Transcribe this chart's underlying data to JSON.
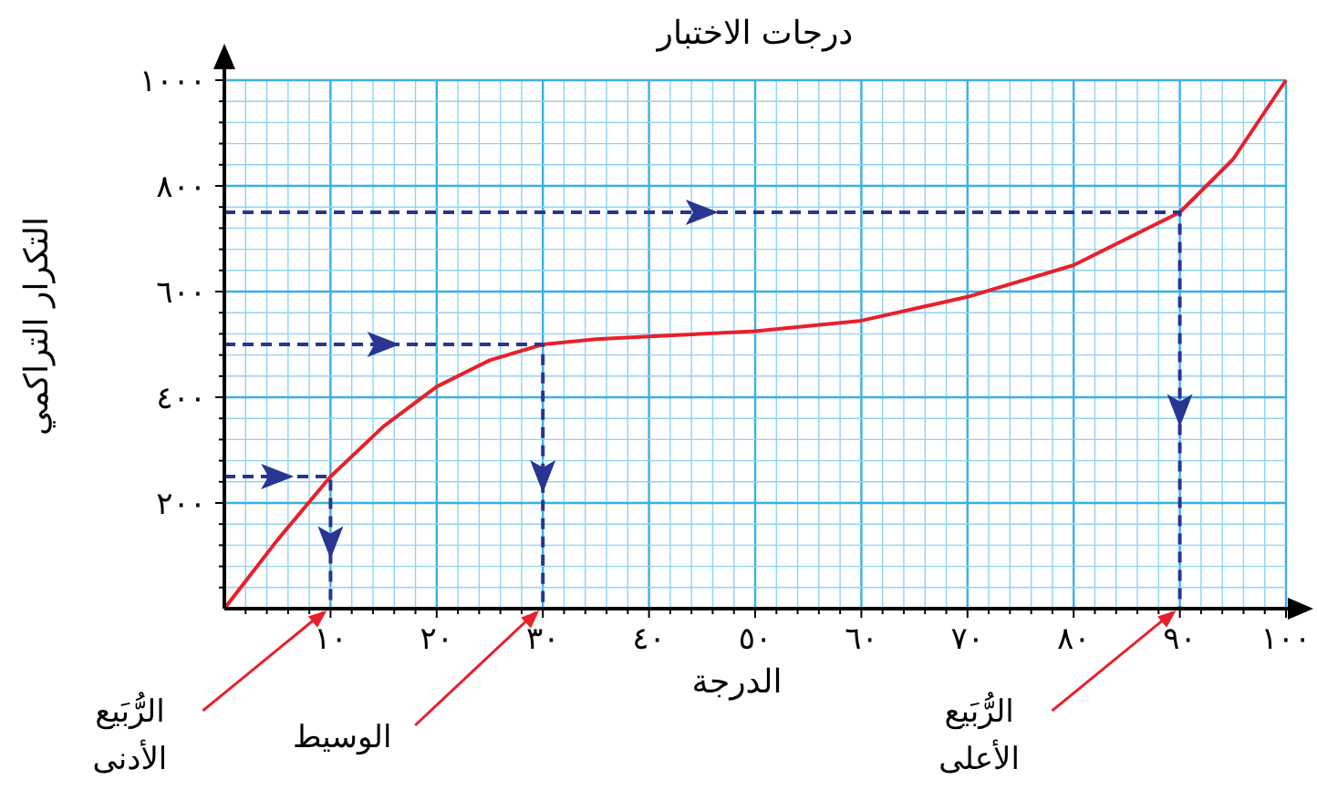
{
  "chart_data": {
    "type": "line",
    "title": "درجات الاختبار",
    "xlabel": "الدرجة",
    "ylabel": "التكرار التراكمي",
    "x": [
      0,
      5,
      10,
      15,
      20,
      25,
      30,
      35,
      40,
      50,
      60,
      70,
      80,
      90,
      95,
      100
    ],
    "series": [
      {
        "color": "#e8202a",
        "values": [
          0,
          130,
          250,
          345,
          420,
          470,
          500,
          510,
          515,
          525,
          545,
          590,
          650,
          750,
          850,
          1000
        ]
      },
      {
        "color": "#283593",
        "line_style": "dashed",
        "x": [
          0,
          10,
          10
        ],
        "values": [
          250,
          250,
          0
        ]
      },
      {
        "color": "#283593",
        "line_style": "dashed",
        "x": [
          0,
          30,
          30
        ],
        "values": [
          500,
          500,
          0
        ]
      },
      {
        "color": "#283593",
        "line_style": "dashed",
        "x": [
          0,
          90,
          90
        ],
        "values": [
          750,
          750,
          0
        ]
      }
    ],
    "xlim": [
      0,
      100
    ],
    "ylim": [
      0,
      1000
    ],
    "xticks": [
      {
        "value": 2,
        "label": null
      },
      {
        "value": 4,
        "label": null
      },
      {
        "value": 6,
        "label": null
      },
      {
        "value": 8,
        "label": null
      },
      {
        "value": 10,
        "label": "١٠"
      },
      {
        "value": 12,
        "label": null
      },
      {
        "value": 14,
        "label": null
      },
      {
        "value": 16,
        "label": null
      },
      {
        "value": 18,
        "label": null
      },
      {
        "value": 20,
        "label": "٢٠"
      },
      {
        "value": 22,
        "label": null
      },
      {
        "value": 24,
        "label": null
      },
      {
        "value": 26,
        "label": null
      },
      {
        "value": 28,
        "label": null
      },
      {
        "value": 30,
        "label": "٣٠"
      },
      {
        "value": 32,
        "label": null
      },
      {
        "value": 34,
        "label": null
      },
      {
        "value": 36,
        "label": null
      },
      {
        "value": 38,
        "label": null
      },
      {
        "value": 40,
        "label": "٤٠"
      },
      {
        "value": 42,
        "label": null
      },
      {
        "value": 44,
        "label": null
      },
      {
        "value": 46,
        "label": null
      },
      {
        "value": 48,
        "label": null
      },
      {
        "value": 50,
        "label": "٥٠"
      },
      {
        "value": 52,
        "label": null
      },
      {
        "value": 54,
        "label": null
      },
      {
        "value": 56,
        "label": null
      },
      {
        "value": 58,
        "label": null
      },
      {
        "value": 60,
        "label": "٦٠"
      },
      {
        "value": 62,
        "label": null
      },
      {
        "value": 64,
        "label": null
      },
      {
        "value": 66,
        "label": null
      },
      {
        "value": 68,
        "label": null
      },
      {
        "value": 70,
        "label": "٧٠"
      },
      {
        "value": 72,
        "label": null
      },
      {
        "value": 74,
        "label": null
      },
      {
        "value": 76,
        "label": null
      },
      {
        "value": 78,
        "label": null
      },
      {
        "value": 80,
        "label": "٨٠"
      },
      {
        "value": 82,
        "label": null
      },
      {
        "value": 84,
        "label": null
      },
      {
        "value": 86,
        "label": null
      },
      {
        "value": 88,
        "label": null
      },
      {
        "value": 90,
        "label": "٩٠"
      },
      {
        "value": 92,
        "label": null
      },
      {
        "value": 94,
        "label": null
      },
      {
        "value": 96,
        "label": null
      },
      {
        "value": 98,
        "label": null
      },
      {
        "value": 100,
        "label": "١٠٠"
      }
    ],
    "yticks": [
      {
        "value": 40,
        "label": null
      },
      {
        "value": 80,
        "label": null
      },
      {
        "value": 120,
        "label": null
      },
      {
        "value": 160,
        "label": null
      },
      {
        "value": 200,
        "label": "٢٠٠"
      },
      {
        "value": 240,
        "label": null
      },
      {
        "value": 280,
        "label": null
      },
      {
        "value": 320,
        "label": null
      },
      {
        "value": 360,
        "label": null
      },
      {
        "value": 400,
        "label": "٤٠٠"
      },
      {
        "value": 440,
        "label": null
      },
      {
        "value": 480,
        "label": null
      },
      {
        "value": 520,
        "label": null
      },
      {
        "value": 560,
        "label": null
      },
      {
        "value": 600,
        "label": "٦٠٠"
      },
      {
        "value": 640,
        "label": null
      },
      {
        "value": 680,
        "label": null
      },
      {
        "value": 720,
        "label": null
      },
      {
        "value": 760,
        "label": null
      },
      {
        "value": 800,
        "label": "٨٠٠"
      },
      {
        "value": 840,
        "label": null
      },
      {
        "value": 880,
        "label": null
      },
      {
        "value": 920,
        "label": null
      },
      {
        "value": 960,
        "label": null
      },
      {
        "value": 1000,
        "label": "١٠٠٠"
      }
    ],
    "grid": true,
    "annotations": [
      {
        "text": "الرُّبَيع الأدنى",
        "x": 10,
        "y": 0
      },
      {
        "text": "الوسيط",
        "x": 30,
        "y": 0
      },
      {
        "text": "الرُّبَيع الأعلى",
        "x": 90,
        "y": 0
      }
    ]
  }
}
